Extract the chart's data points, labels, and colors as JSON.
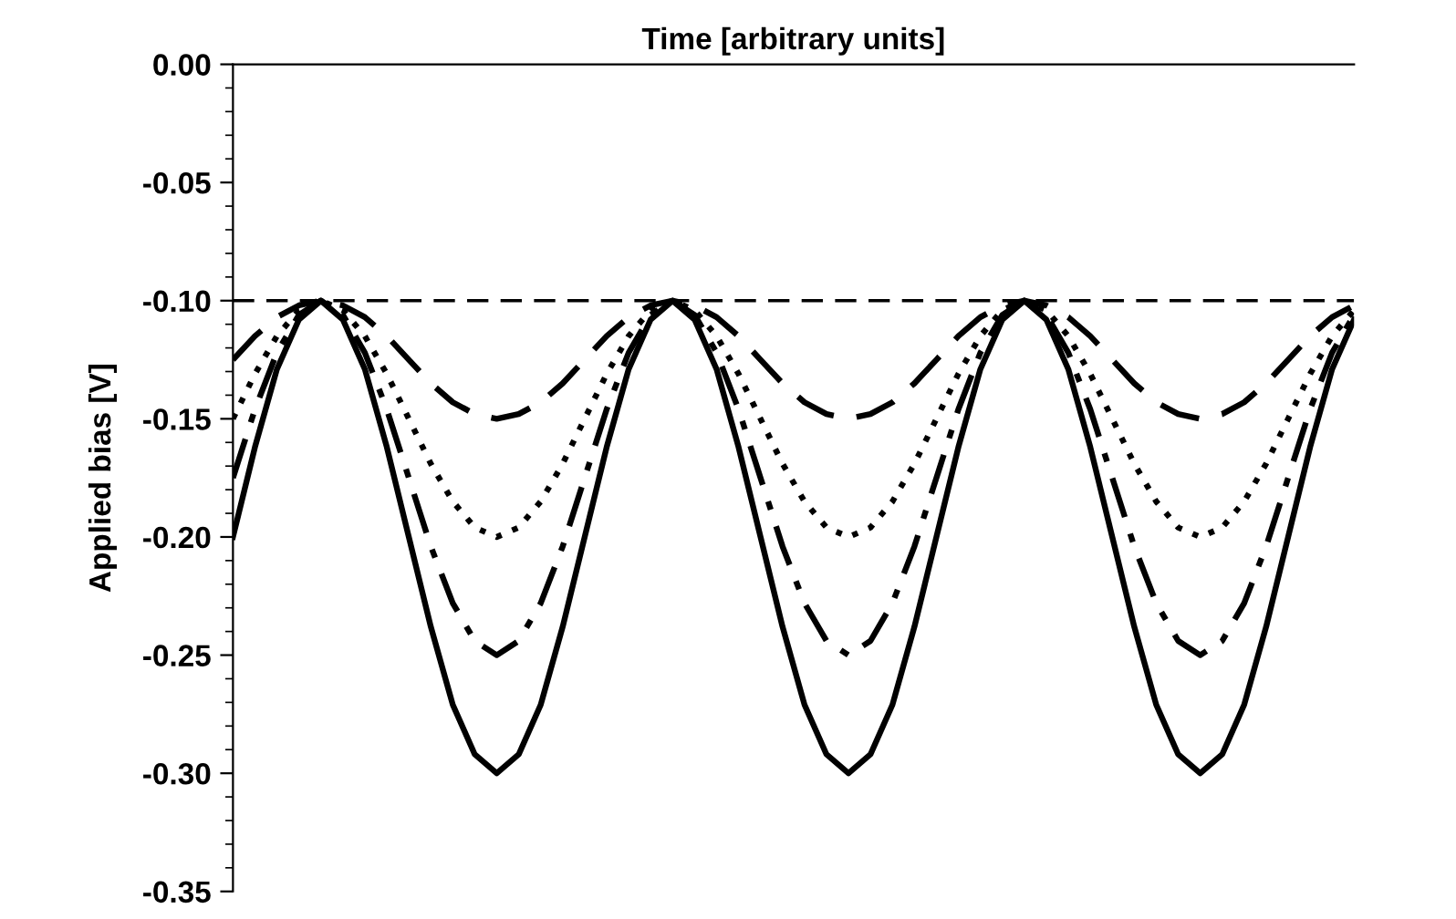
{
  "chart_data": {
    "type": "line",
    "xlabel": "Time [arbitrary units]",
    "ylabel": "Applied bias [V]",
    "categories": [
      null,
      null,
      null,
      null,
      null,
      null,
      null,
      null,
      null,
      null,
      null,
      null,
      null,
      null,
      null,
      null,
      null,
      null,
      null,
      null,
      null,
      null,
      null,
      null,
      null,
      null,
      null,
      null,
      null,
      null,
      null,
      null,
      null,
      null,
      null,
      null,
      null,
      null,
      null,
      null,
      null,
      null,
      null,
      null,
      null,
      null,
      null,
      null,
      null,
      null,
      null,
      null
    ],
    "series": [
      {
        "color": "#000000",
        "line_style": "dashed",
        "values": [
          -0.125,
          -0.115,
          -0.107,
          -0.102,
          -0.1,
          -0.102,
          -0.107,
          -0.115,
          -0.125,
          -0.135,
          -0.143,
          -0.148,
          -0.15,
          -0.148,
          -0.143,
          -0.135,
          -0.125,
          -0.115,
          -0.107,
          -0.102,
          -0.1,
          -0.102,
          -0.107,
          -0.115,
          -0.125,
          -0.135,
          -0.143,
          -0.148,
          -0.15,
          -0.148,
          -0.143,
          -0.135,
          -0.125,
          -0.115,
          -0.107,
          -0.102,
          -0.1,
          -0.102,
          -0.107,
          -0.115,
          -0.125,
          -0.135,
          -0.143,
          -0.148,
          -0.15,
          -0.148,
          -0.143,
          -0.135,
          -0.125,
          -0.115,
          -0.107,
          -0.102
        ]
      },
      {
        "color": "#000000",
        "line_style": "dotted",
        "values": [
          -0.15,
          -0.131,
          -0.115,
          -0.104,
          -0.1,
          -0.104,
          -0.115,
          -0.131,
          -0.15,
          -0.169,
          -0.185,
          -0.196,
          -0.2,
          -0.196,
          -0.185,
          -0.169,
          -0.15,
          -0.131,
          -0.115,
          -0.104,
          -0.1,
          -0.104,
          -0.115,
          -0.131,
          -0.15,
          -0.169,
          -0.185,
          -0.196,
          -0.2,
          -0.196,
          -0.185,
          -0.169,
          -0.15,
          -0.131,
          -0.115,
          -0.104,
          -0.1,
          -0.104,
          -0.115,
          -0.131,
          -0.15,
          -0.169,
          -0.185,
          -0.196,
          -0.2,
          -0.196,
          -0.185,
          -0.169,
          -0.15,
          -0.131,
          -0.115,
          -0.104
        ]
      },
      {
        "color": "#000000",
        "line_style": "dashdot",
        "values": [
          -0.175,
          -0.146,
          -0.122,
          -0.106,
          -0.1,
          -0.106,
          -0.122,
          -0.146,
          -0.175,
          -0.204,
          -0.228,
          -0.244,
          -0.25,
          -0.244,
          -0.228,
          -0.204,
          -0.175,
          -0.146,
          -0.122,
          -0.106,
          -0.1,
          -0.106,
          -0.122,
          -0.146,
          -0.175,
          -0.204,
          -0.228,
          -0.244,
          -0.25,
          -0.244,
          -0.228,
          -0.204,
          -0.175,
          -0.146,
          -0.122,
          -0.106,
          -0.1,
          -0.106,
          -0.122,
          -0.146,
          -0.175,
          -0.204,
          -0.228,
          -0.244,
          -0.25,
          -0.244,
          -0.228,
          -0.204,
          -0.175,
          -0.146,
          -0.122,
          -0.106
        ]
      },
      {
        "color": "#000000",
        "line_style": "solid",
        "values": [
          -0.2,
          -0.162,
          -0.129,
          -0.108,
          -0.1,
          -0.108,
          -0.129,
          -0.162,
          -0.2,
          -0.238,
          -0.271,
          -0.292,
          -0.3,
          -0.292,
          -0.271,
          -0.238,
          -0.2,
          -0.162,
          -0.129,
          -0.108,
          -0.1,
          -0.108,
          -0.129,
          -0.162,
          -0.2,
          -0.238,
          -0.271,
          -0.292,
          -0.3,
          -0.292,
          -0.271,
          -0.238,
          -0.2,
          -0.162,
          -0.129,
          -0.108,
          -0.1,
          -0.108,
          -0.129,
          -0.162,
          -0.2,
          -0.238,
          -0.271,
          -0.292,
          -0.3,
          -0.292,
          -0.271,
          -0.238,
          -0.2,
          -0.162,
          -0.129,
          -0.108
        ]
      }
    ],
    "ylim": [
      -0.35,
      0.0
    ],
    "yticks": [
      {
        "value": -0.35,
        "label": "-0.35"
      },
      {
        "value": -0.3,
        "label": "-0.30"
      },
      {
        "value": -0.25,
        "label": "-0.25"
      },
      {
        "value": -0.2,
        "label": "-0.20"
      },
      {
        "value": -0.15,
        "label": "-0.15"
      },
      {
        "value": -0.1,
        "label": "-0.10"
      },
      {
        "value": -0.05,
        "label": "-0.05"
      },
      {
        "value": 0.0,
        "label": "0.00"
      }
    ],
    "ref_lines": [
      {
        "axis": "y",
        "value": -0.1,
        "color": "#000000",
        "line_style": "dashed"
      }
    ],
    "tick_labels": "y",
    "grid": false,
    "legend": false,
    "marker": "none"
  }
}
